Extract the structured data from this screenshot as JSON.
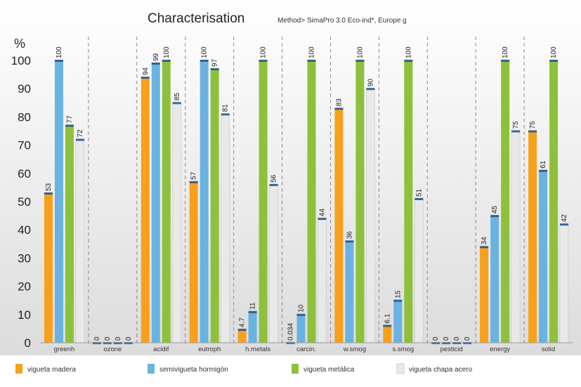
{
  "chart_data": {
    "type": "bar",
    "title": "Characterisation",
    "subtitle": "Method> SimaPro 3.0 Eco-ind*, Europe g",
    "ylabel": "%",
    "ylim": [
      0,
      100
    ],
    "yticks": [
      "0",
      "10",
      "20",
      "30",
      "40",
      "50",
      "60",
      "70",
      "80",
      "90",
      "100"
    ],
    "grid": false,
    "legend": "bottom",
    "categories": [
      "greenh",
      "ozone",
      "acidif",
      "eutroph",
      "h.metals",
      "carcin.",
      "w.smog",
      "s.smog",
      "pesticid",
      "energy",
      "solid"
    ],
    "series": [
      {
        "name": "vigueta madera",
        "color": "#f7a11a",
        "values": [
          53,
          0,
          94,
          57,
          4.7,
          0.034,
          83,
          6.1,
          0,
          34,
          75
        ],
        "labels": [
          "53",
          "0",
          "94",
          "57",
          "4.7",
          "0.034",
          "83",
          "6.1",
          "0",
          "34",
          "75"
        ]
      },
      {
        "name": "semivigueta hormigón",
        "color": "#69b3e3",
        "values": [
          100,
          0,
          99,
          100,
          11,
          10,
          36,
          15,
          0,
          45,
          61
        ],
        "labels": [
          "100",
          "0",
          "99",
          "100",
          "11",
          "10",
          "36",
          "15",
          "0",
          "45",
          "61"
        ]
      },
      {
        "name": "vigueta metálica",
        "color": "#8fc03c",
        "values": [
          77,
          0,
          100,
          97,
          100,
          100,
          100,
          100,
          0,
          100,
          100
        ],
        "labels": [
          "77",
          "0",
          "100",
          "97",
          "100",
          "100",
          "100",
          "100",
          "0",
          "100",
          "100"
        ]
      },
      {
        "name": "vigueta chapa acero",
        "color": "#e9e9e9",
        "values": [
          72,
          0,
          85,
          81,
          56,
          44,
          90,
          51,
          0,
          75,
          42
        ],
        "labels": [
          "72",
          "0",
          "85",
          "81",
          "56",
          "44",
          "90",
          "51",
          "0",
          "75",
          "42"
        ]
      }
    ]
  }
}
